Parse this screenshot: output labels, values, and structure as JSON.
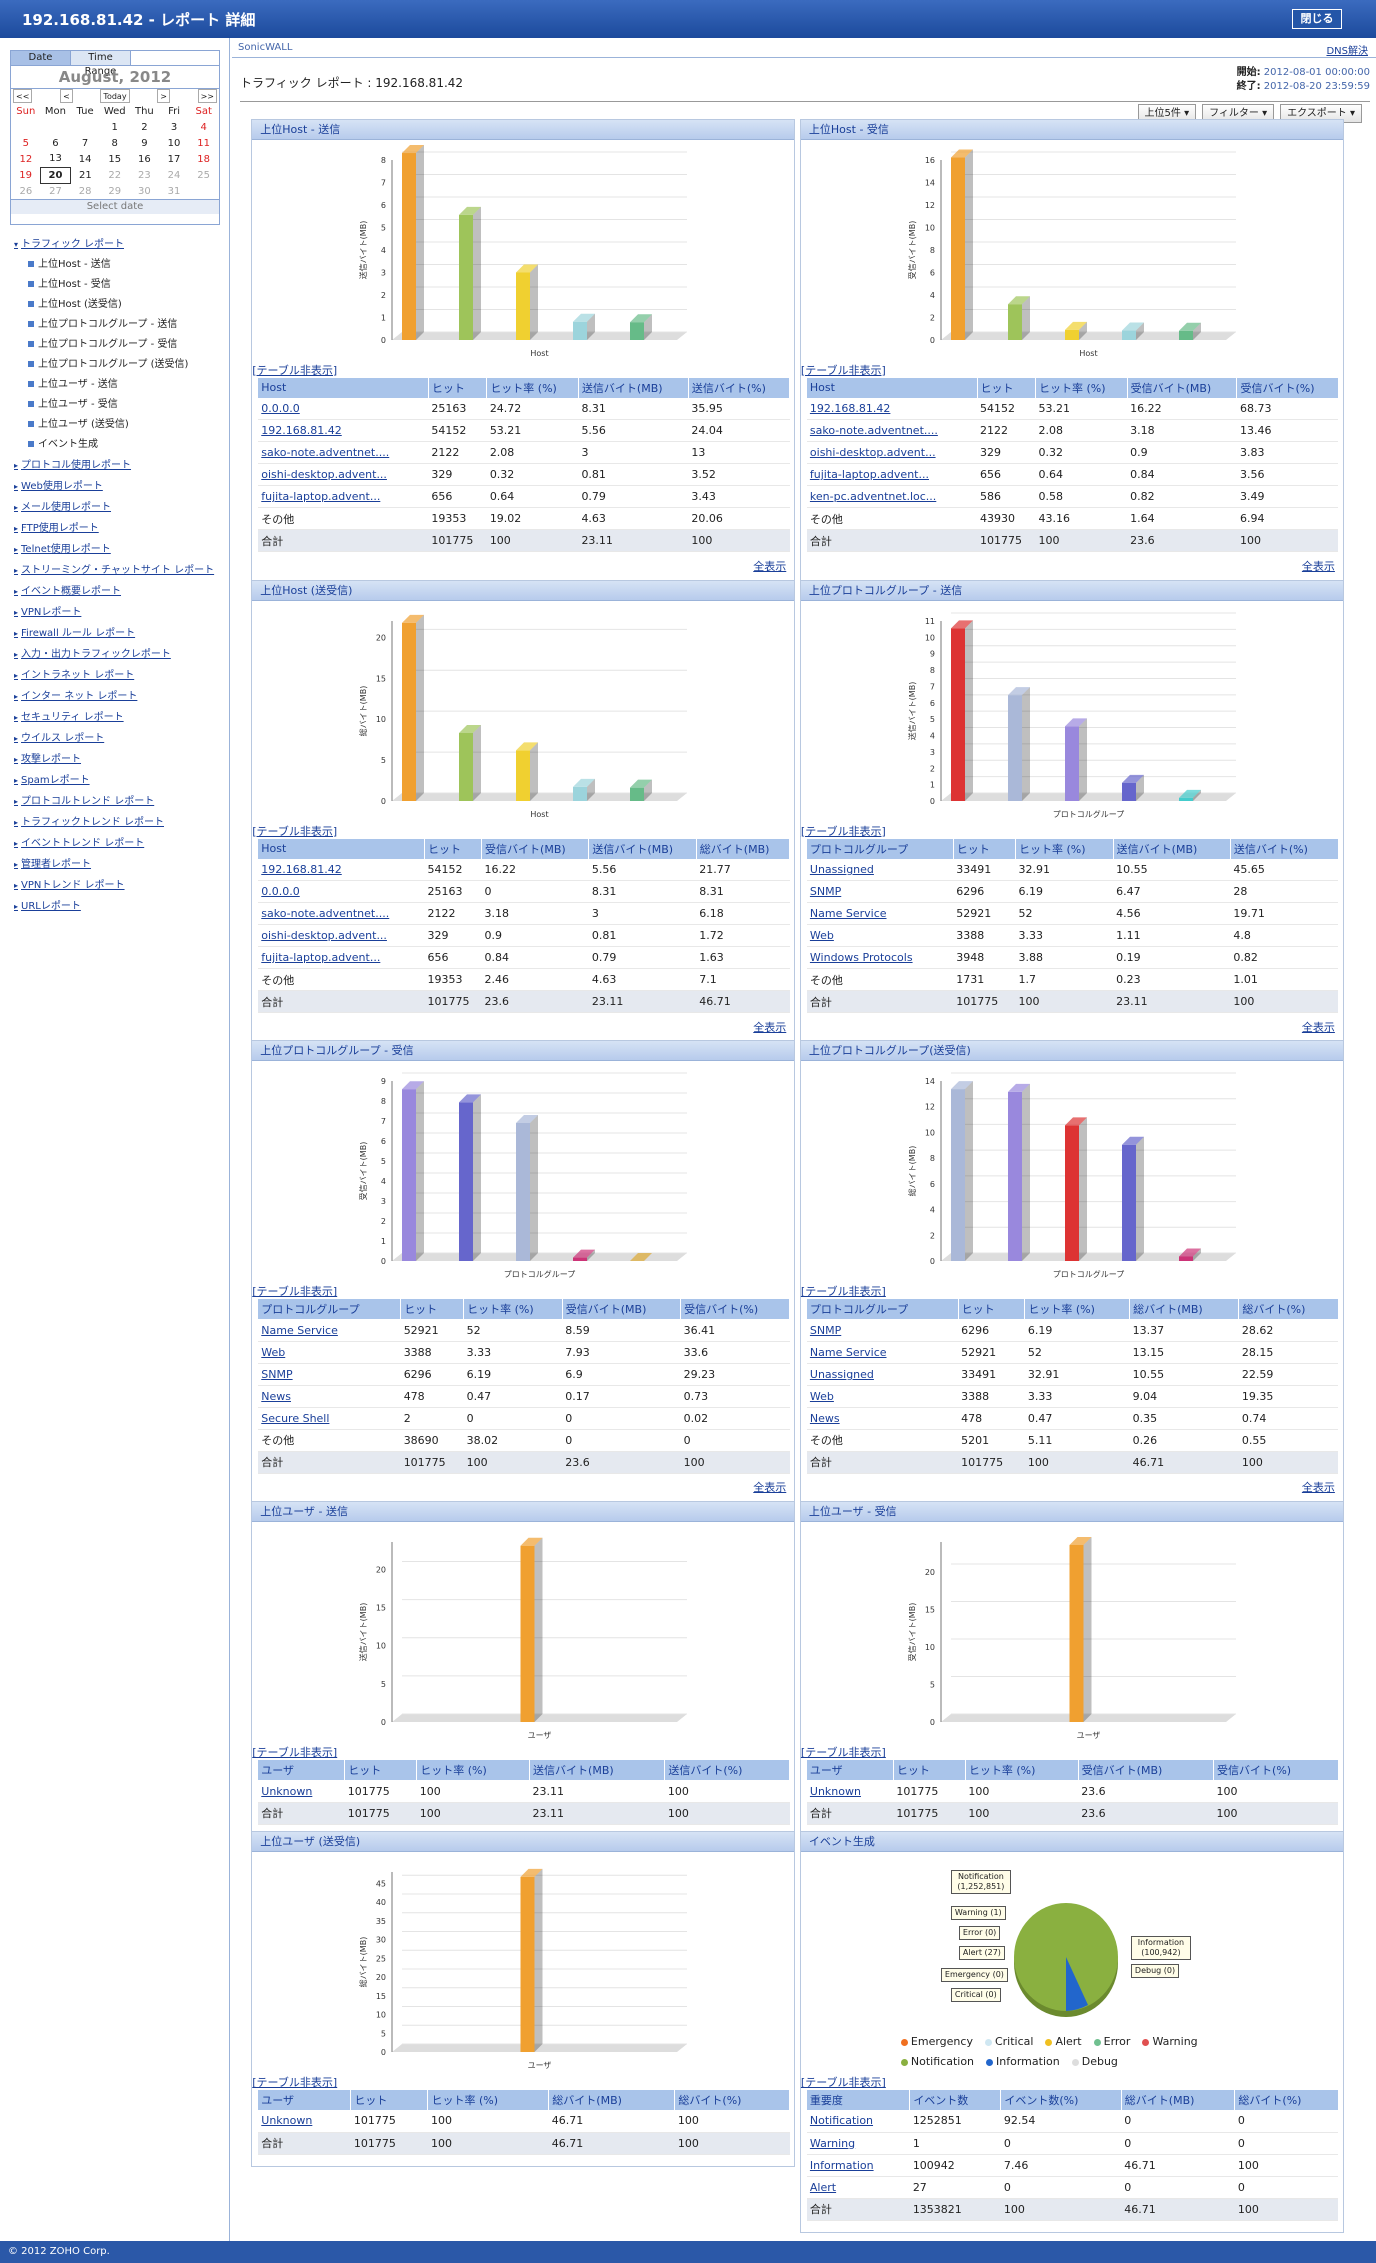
{
  "window": {
    "title": "192.168.81.42 - レポート 詳細",
    "close_label": "閉じる"
  },
  "calendar": {
    "tabs": [
      "Date",
      "Time Range"
    ],
    "month": "August, 2012",
    "nav": [
      "<<",
      "<",
      "Today",
      ">",
      ">>"
    ],
    "weekdays": [
      "Sun",
      "Mon",
      "Tue",
      "Wed",
      "Thu",
      "Fri",
      "Sat"
    ],
    "weeks": [
      [
        "",
        "",
        "",
        "1",
        "2",
        "3",
        "4"
      ],
      [
        "5",
        "6",
        "7",
        "8",
        "9",
        "10",
        "11"
      ],
      [
        "12",
        "13",
        "14",
        "15",
        "16",
        "17",
        "18"
      ],
      [
        "19",
        "20",
        "21",
        "22",
        "23",
        "24",
        "25"
      ],
      [
        "26",
        "27",
        "28",
        "29",
        "30",
        "31",
        ""
      ]
    ],
    "select_label": "Select date"
  },
  "tree": {
    "root": "トラフィック レポート",
    "subs": [
      "上位Host - 送信",
      "上位Host - 受信",
      "上位Host (送受信)",
      "上位プロトコルグループ - 送信",
      "上位プロトコルグループ - 受信",
      "上位プロトコルグループ (送受信)",
      "上位ユーザ - 送信",
      "上位ユーザ - 受信",
      "上位ユーザ (送受信)",
      "イベント生成"
    ],
    "items": [
      "プロトコル使用レポート",
      "Web使用レポート",
      "メール使用レポート",
      "FTP使用レポート",
      "Telnet使用レポート",
      "ストリーミング・チャットサイト レポート",
      "イベント概要レポート",
      "VPNレポート",
      "Firewall ルール レポート",
      "入力・出力トラフィックレポート",
      "イントラネット レポート",
      "インター ネット レポート",
      "セキュリティ レポート",
      "ウイルス レポート",
      "攻撃レポート",
      "Spamレポート",
      "プロトコルトレンド レポート",
      "トラフィックトレンド レポート",
      "イベントトレンド レポート",
      "管理者レポート",
      "VPNトレンド レポート",
      "URLレポート"
    ]
  },
  "header": {
    "device": "SonicWALL",
    "dns": "DNS解決",
    "report_title": "トラフィック レポート : 192.168.81.42",
    "start_label": "開始:",
    "start": "2012-08-01 00:00:00",
    "end_label": "終了:",
    "end": "2012-08-20 23:59:59",
    "filters": [
      "上位5件 ▾",
      "フィルター ▾",
      "エクスポート ▾"
    ]
  },
  "labels": {
    "toggle": "[テーブル非表示]",
    "showall": "全表示"
  },
  "panels": [
    {
      "title": "上位Host - 送信",
      "ylabel": "送信バイト(MB)",
      "xlabel": "Host",
      "ymax": 8,
      "ticks": [
        0,
        1,
        2,
        3,
        4,
        5,
        6,
        7,
        8
      ],
      "bars": [
        {
          "v": 8.31,
          "c": "#f0a030"
        },
        {
          "v": 5.56,
          "c": "#9ec45a"
        },
        {
          "v": 3.0,
          "c": "#f0d030"
        },
        {
          "v": 0.81,
          "c": "#9cd4dc"
        },
        {
          "v": 0.79,
          "c": "#66bb88"
        }
      ],
      "columns": [
        "Host",
        "ヒット",
        "ヒット率 (%)",
        "送信バイト(MB)",
        "送信バイト(%)"
      ],
      "rows": [
        [
          "0.0.0.0",
          "25163",
          "24.72",
          "8.31",
          "35.95"
        ],
        [
          "192.168.81.42",
          "54152",
          "53.21",
          "5.56",
          "24.04"
        ],
        [
          "sako-note.adventnet....",
          "2122",
          "2.08",
          "3",
          "13"
        ],
        [
          "oishi-desktop.advent...",
          "329",
          "0.32",
          "0.81",
          "3.52"
        ],
        [
          "fujita-laptop.advent...",
          "656",
          "0.64",
          "0.79",
          "3.43"
        ],
        [
          "その他",
          "19353",
          "19.02",
          "4.63",
          "20.06"
        ],
        [
          "合計",
          "101775",
          "100",
          "23.11",
          "100"
        ]
      ],
      "showall": true
    },
    {
      "title": "上位Host - 受信",
      "ylabel": "受信バイト(MB)",
      "xlabel": "Host",
      "ymax": 16,
      "ticks": [
        0,
        2,
        4,
        6,
        8,
        10,
        12,
        14,
        16
      ],
      "bars": [
        {
          "v": 16.22,
          "c": "#f0a030"
        },
        {
          "v": 3.18,
          "c": "#9ec45a"
        },
        {
          "v": 0.9,
          "c": "#f0d030"
        },
        {
          "v": 0.84,
          "c": "#9cd4dc"
        },
        {
          "v": 0.82,
          "c": "#66bb88"
        }
      ],
      "columns": [
        "Host",
        "ヒット",
        "ヒット率 (%)",
        "受信バイト(MB)",
        "受信バイト(%)"
      ],
      "rows": [
        [
          "192.168.81.42",
          "54152",
          "53.21",
          "16.22",
          "68.73"
        ],
        [
          "sako-note.adventnet....",
          "2122",
          "2.08",
          "3.18",
          "13.46"
        ],
        [
          "oishi-desktop.advent...",
          "329",
          "0.32",
          "0.9",
          "3.83"
        ],
        [
          "fujita-laptop.advent...",
          "656",
          "0.64",
          "0.84",
          "3.56"
        ],
        [
          "ken-pc.adventnet.loc...",
          "586",
          "0.58",
          "0.82",
          "3.49"
        ],
        [
          "その他",
          "43930",
          "43.16",
          "1.64",
          "6.94"
        ],
        [
          "合計",
          "101775",
          "100",
          "23.6",
          "100"
        ]
      ],
      "showall": true
    },
    {
      "title": "上位Host (送受信)",
      "ylabel": "総バイト(MB)",
      "xlabel": "Host",
      "ymax": 22,
      "ticks": [
        0,
        5,
        10,
        15,
        20
      ],
      "bars": [
        {
          "v": 21.77,
          "c": "#f0a030"
        },
        {
          "v": 8.31,
          "c": "#9ec45a"
        },
        {
          "v": 6.18,
          "c": "#f0d030"
        },
        {
          "v": 1.72,
          "c": "#9cd4dc"
        },
        {
          "v": 1.63,
          "c": "#66bb88"
        }
      ],
      "columns": [
        "Host",
        "ヒット",
        "受信バイト(MB)",
        "送信バイト(MB)",
        "総バイト(MB)"
      ],
      "rows": [
        [
          "192.168.81.42",
          "54152",
          "16.22",
          "5.56",
          "21.77"
        ],
        [
          "0.0.0.0",
          "25163",
          "0",
          "8.31",
          "8.31"
        ],
        [
          "sako-note.adventnet....",
          "2122",
          "3.18",
          "3",
          "6.18"
        ],
        [
          "oishi-desktop.advent...",
          "329",
          "0.9",
          "0.81",
          "1.72"
        ],
        [
          "fujita-laptop.advent...",
          "656",
          "0.84",
          "0.79",
          "1.63"
        ],
        [
          "その他",
          "19353",
          "2.46",
          "4.63",
          "7.1"
        ],
        [
          "合計",
          "101775",
          "23.6",
          "23.11",
          "46.71"
        ]
      ],
      "showall": true
    },
    {
      "title": "上位プロトコルグループ - 送信",
      "ylabel": "送信バイト(MB)",
      "xlabel": "プロトコルグループ",
      "ymax": 11,
      "ticks": [
        0,
        1,
        2,
        3,
        4,
        5,
        6,
        7,
        8,
        9,
        10,
        11
      ],
      "bars": [
        {
          "v": 10.55,
          "c": "#dd3333"
        },
        {
          "v": 6.47,
          "c": "#aab8d8"
        },
        {
          "v": 4.56,
          "c": "#9988dd"
        },
        {
          "v": 1.11,
          "c": "#6666cc"
        },
        {
          "v": 0.19,
          "c": "#44cccc"
        }
      ],
      "columns": [
        "プロトコルグループ",
        "ヒット",
        "ヒット率 (%)",
        "送信バイト(MB)",
        "送信バイト(%)"
      ],
      "rows": [
        [
          "Unassigned",
          "33491",
          "32.91",
          "10.55",
          "45.65"
        ],
        [
          "SNMP",
          "6296",
          "6.19",
          "6.47",
          "28"
        ],
        [
          "Name Service",
          "52921",
          "52",
          "4.56",
          "19.71"
        ],
        [
          "Web",
          "3388",
          "3.33",
          "1.11",
          "4.8"
        ],
        [
          "Windows Protocols",
          "3948",
          "3.88",
          "0.19",
          "0.82"
        ],
        [
          "その他",
          "1731",
          "1.7",
          "0.23",
          "1.01"
        ],
        [
          "合計",
          "101775",
          "100",
          "23.11",
          "100"
        ]
      ],
      "showall": true
    },
    {
      "title": "上位プロトコルグループ - 受信",
      "ylabel": "受信バイト(MB)",
      "xlabel": "プロトコルグループ",
      "ymax": 9,
      "ticks": [
        0,
        1,
        2,
        3,
        4,
        5,
        6,
        7,
        8,
        9
      ],
      "bars": [
        {
          "v": 8.59,
          "c": "#9988dd"
        },
        {
          "v": 7.93,
          "c": "#6666cc"
        },
        {
          "v": 6.9,
          "c": "#aab8d8"
        },
        {
          "v": 0.17,
          "c": "#cc3377"
        },
        {
          "v": 0.0,
          "c": "#ddaa33"
        }
      ],
      "columns": [
        "プロトコルグループ",
        "ヒット",
        "ヒット率 (%)",
        "受信バイト(MB)",
        "受信バイト(%)"
      ],
      "rows": [
        [
          "Name Service",
          "52921",
          "52",
          "8.59",
          "36.41"
        ],
        [
          "Web",
          "3388",
          "3.33",
          "7.93",
          "33.6"
        ],
        [
          "SNMP",
          "6296",
          "6.19",
          "6.9",
          "29.23"
        ],
        [
          "News",
          "478",
          "0.47",
          "0.17",
          "0.73"
        ],
        [
          "Secure Shell",
          "2",
          "0",
          "0",
          "0.02"
        ],
        [
          "その他",
          "38690",
          "38.02",
          "0",
          "0"
        ],
        [
          "合計",
          "101775",
          "100",
          "23.6",
          "100"
        ]
      ],
      "showall": true
    },
    {
      "title": "上位プロトコルグループ(送受信)",
      "ylabel": "総バイト(MB)",
      "xlabel": "プロトコルグループ",
      "ymax": 14,
      "ticks": [
        0,
        2,
        4,
        6,
        8,
        10,
        12,
        14
      ],
      "bars": [
        {
          "v": 13.37,
          "c": "#aab8d8"
        },
        {
          "v": 13.15,
          "c": "#9988dd"
        },
        {
          "v": 10.55,
          "c": "#dd3333"
        },
        {
          "v": 9.04,
          "c": "#6666cc"
        },
        {
          "v": 0.35,
          "c": "#cc3377"
        }
      ],
      "columns": [
        "プロトコルグループ",
        "ヒット",
        "ヒット率 (%)",
        "総バイト(MB)",
        "総バイト(%)"
      ],
      "rows": [
        [
          "SNMP",
          "6296",
          "6.19",
          "13.37",
          "28.62"
        ],
        [
          "Name Service",
          "52921",
          "52",
          "13.15",
          "28.15"
        ],
        [
          "Unassigned",
          "33491",
          "32.91",
          "10.55",
          "22.59"
        ],
        [
          "Web",
          "3388",
          "3.33",
          "9.04",
          "19.35"
        ],
        [
          "News",
          "478",
          "0.47",
          "0.35",
          "0.74"
        ],
        [
          "その他",
          "5201",
          "5.11",
          "0.26",
          "0.55"
        ],
        [
          "合計",
          "101775",
          "100",
          "46.71",
          "100"
        ]
      ],
      "showall": true
    },
    {
      "title": "上位ユーザ - 送信",
      "ylabel": "送信バイト(MB)",
      "xlabel": "ユーザ",
      "ymax": 23.6,
      "ticks": [
        0,
        5,
        10,
        15,
        20
      ],
      "bars": [
        {
          "v": 23.11,
          "c": "#f0a030"
        }
      ],
      "columns": [
        "ユーザ",
        "ヒット",
        "ヒット率 (%)",
        "送信バイト(MB)",
        "送信バイト(%)"
      ],
      "rows": [
        [
          "Unknown",
          "101775",
          "100",
          "23.11",
          "100"
        ],
        [
          "合計",
          "101775",
          "100",
          "23.11",
          "100"
        ]
      ],
      "showall": false
    },
    {
      "title": "上位ユーザ - 受信",
      "ylabel": "受信バイト(MB)",
      "xlabel": "ユーザ",
      "ymax": 24,
      "ticks": [
        0,
        5,
        10,
        15,
        20
      ],
      "bars": [
        {
          "v": 23.6,
          "c": "#f0a030"
        }
      ],
      "columns": [
        "ユーザ",
        "ヒット",
        "ヒット率 (%)",
        "受信バイト(MB)",
        "受信バイト(%)"
      ],
      "rows": [
        [
          "Unknown",
          "101775",
          "100",
          "23.6",
          "100"
        ],
        [
          "合計",
          "101775",
          "100",
          "23.6",
          "100"
        ]
      ],
      "showall": false
    },
    {
      "title": "上位ユーザ (送受信)",
      "ylabel": "総バイト(MB)",
      "xlabel": "ユーザ",
      "ymax": 48,
      "ticks": [
        0,
        5,
        10,
        15,
        20,
        25,
        30,
        35,
        40,
        45
      ],
      "bars": [
        {
          "v": 46.71,
          "c": "#f0a030"
        }
      ],
      "columns": [
        "ユーザ",
        "ヒット",
        "ヒット率 (%)",
        "総バイト(MB)",
        "総バイト(%)"
      ],
      "rows": [
        [
          "Unknown",
          "101775",
          "100",
          "46.71",
          "100"
        ],
        [
          "合計",
          "101775",
          "100",
          "46.71",
          "100"
        ]
      ],
      "showall": false
    },
    {
      "title": "イベント生成",
      "pie": true,
      "callouts": [
        "Notification (1,252,851)",
        "Warning (1)",
        "Error (0)",
        "Alert (27)",
        "Emergency (0)",
        "Critical (0)",
        "Information (100,942)",
        "Debug (0)"
      ],
      "legend": [
        {
          "n": "Emergency",
          "c": "#f07020"
        },
        {
          "n": "Critical",
          "c": "#cfe7f2"
        },
        {
          "n": "Alert",
          "c": "#f0c020"
        },
        {
          "n": "Error",
          "c": "#70c090"
        },
        {
          "n": "Warning",
          "c": "#e05050"
        },
        {
          "n": "Notification",
          "c": "#8ab040"
        },
        {
          "n": "Information",
          "c": "#2266cc"
        },
        {
          "n": "Debug",
          "c": "#dddddd"
        }
      ],
      "columns": [
        "重要度",
        "イベント数",
        "イベント数(%)",
        "総バイト(MB)",
        "総バイト(%)"
      ],
      "rows": [
        [
          "Notification",
          "1252851",
          "92.54",
          "0",
          "0"
        ],
        [
          "Warning",
          "1",
          "0",
          "0",
          "0"
        ],
        [
          "Information",
          "100942",
          "7.46",
          "46.71",
          "100"
        ],
        [
          "Alert",
          "27",
          "0",
          "0",
          "0"
        ],
        [
          "合計",
          "1353821",
          "100",
          "46.71",
          "100"
        ]
      ],
      "showall": false
    }
  ],
  "footer": "© 2012 ZOHO Corp."
}
